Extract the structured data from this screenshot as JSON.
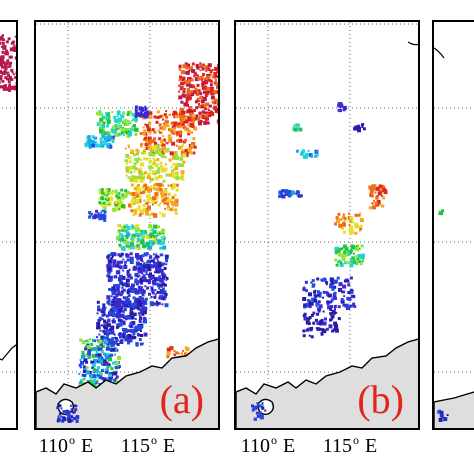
{
  "colors": {
    "label": "#e0251b",
    "land": "#dedede",
    "coast": "#000000",
    "grid": "#666666",
    "palette": [
      "#2a1aa6",
      "#3a2bd6",
      "#1e4fe0",
      "#17a8e8",
      "#1fd6d6",
      "#23c23a",
      "#8ee63a",
      "#e6e22a",
      "#f5a623",
      "#f06a1a",
      "#e0251b",
      "#b51a4d"
    ]
  },
  "panels": [
    {
      "id": "left-partial",
      "label": ""
    },
    {
      "id": "a",
      "label": "(a)"
    },
    {
      "id": "b",
      "label": "(b)"
    },
    {
      "id": "right-partial",
      "label": ""
    }
  ],
  "axis": {
    "a": {
      "ticks": [
        {
          "deg": "110",
          "hemi": "E"
        },
        {
          "deg": "115",
          "hemi": "E"
        }
      ]
    },
    "b": {
      "ticks": [
        {
          "deg": "110",
          "hemi": "E"
        },
        {
          "deg": "115",
          "hemi": "E"
        }
      ]
    }
  }
}
